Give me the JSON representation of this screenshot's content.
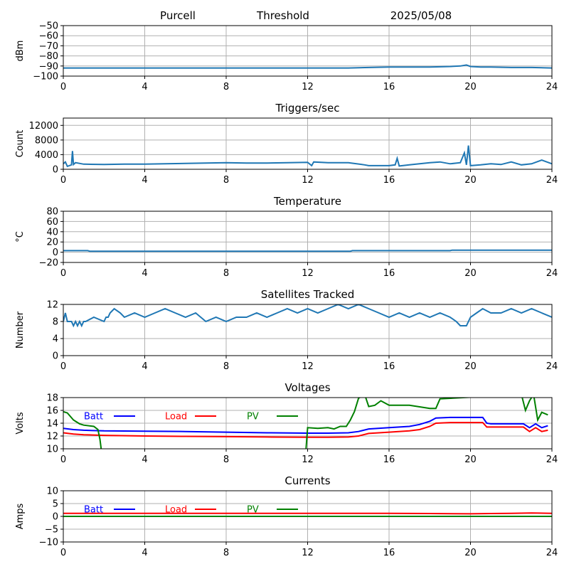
{
  "header": {
    "station": "Purcell",
    "section": "Threshold",
    "date": "2025/05/08"
  },
  "colors": {
    "series_default": "#1f77b4",
    "batt": "#0000ff",
    "load": "#ff0000",
    "pv": "#008000",
    "grid": "#b0b0b0"
  },
  "chart_data": [
    {
      "type": "line",
      "title": "",
      "ylabel": "dBm",
      "xlim": [
        0,
        24
      ],
      "ylim": [
        -100,
        -50
      ],
      "xticks": [
        0,
        4,
        8,
        12,
        16,
        20,
        24
      ],
      "yticks": [
        -100,
        -90,
        -80,
        -70,
        -60,
        -50
      ],
      "grid": true,
      "series": [
        {
          "color": "#1f77b4",
          "x": [
            0,
            2,
            4,
            6,
            8,
            10,
            12,
            14,
            15,
            16,
            17,
            18,
            19,
            19.5,
            19.8,
            20,
            20.5,
            21,
            22,
            23,
            24
          ],
          "y": [
            -92,
            -92,
            -92,
            -92,
            -92,
            -92,
            -92,
            -92,
            -91.5,
            -91,
            -91,
            -91,
            -90.5,
            -90,
            -89,
            -90.5,
            -91,
            -91,
            -91.5,
            -91.5,
            -92
          ]
        }
      ]
    },
    {
      "type": "line",
      "title": "Triggers/sec",
      "ylabel": "Count",
      "xlim": [
        0,
        24
      ],
      "ylim": [
        0,
        14000
      ],
      "xticks": [
        0,
        4,
        8,
        12,
        16,
        20,
        24
      ],
      "yticks": [
        0,
        4000,
        8000,
        12000
      ],
      "grid": true,
      "series": [
        {
          "color": "#1f77b4",
          "x": [
            0,
            0.1,
            0.2,
            0.4,
            0.45,
            0.5,
            0.6,
            1,
            2,
            3,
            4,
            5,
            6,
            7,
            8,
            9,
            10,
            11,
            12,
            12.2,
            12.3,
            13,
            14,
            14.8,
            15,
            16,
            16.3,
            16.4,
            16.5,
            17,
            17.5,
            18,
            18.5,
            19,
            19.5,
            19.7,
            19.8,
            19.9,
            20,
            20.5,
            21,
            21.5,
            22,
            22.5,
            23,
            23.5,
            24
          ],
          "y": [
            1500,
            2000,
            800,
            1200,
            5000,
            1300,
            1800,
            1400,
            1300,
            1400,
            1400,
            1500,
            1600,
            1700,
            1800,
            1700,
            1700,
            1800,
            1900,
            1000,
            2000,
            1800,
            1800,
            1200,
            1000,
            1000,
            1200,
            3000,
            900,
            1200,
            1500,
            1800,
            2000,
            1500,
            1800,
            4500,
            1200,
            6500,
            1000,
            1200,
            1500,
            1300,
            2000,
            1200,
            1500,
            2500,
            1500
          ]
        }
      ]
    },
    {
      "type": "line",
      "title": "Temperature",
      "ylabel": "°C",
      "xlim": [
        0,
        24
      ],
      "ylim": [
        -20,
        80
      ],
      "xticks": [
        0,
        4,
        8,
        12,
        16,
        20,
        24
      ],
      "yticks": [
        -20,
        0,
        20,
        40,
        60,
        80
      ],
      "grid": true,
      "series": [
        {
          "color": "#1f77b4",
          "x": [
            0,
            1.2,
            1.3,
            4,
            8,
            12,
            14.1,
            14.2,
            16,
            18,
            19,
            19.1,
            22,
            24
          ],
          "y": [
            3,
            3,
            2,
            2,
            2,
            2,
            2,
            3,
            3,
            3,
            3,
            4,
            4,
            4
          ]
        }
      ]
    },
    {
      "type": "line",
      "title": "Satellites Tracked",
      "ylabel": "Number",
      "xlim": [
        0,
        24
      ],
      "ylim": [
        0,
        12
      ],
      "xticks": [
        0,
        4,
        8,
        12,
        16,
        20,
        24
      ],
      "yticks": [
        0,
        4,
        8,
        12
      ],
      "grid": true,
      "series": [
        {
          "color": "#1f77b4",
          "x": [
            0,
            0.1,
            0.2,
            0.4,
            0.5,
            0.6,
            0.7,
            0.8,
            0.9,
            1.0,
            1.1,
            1.5,
            2.0,
            2.1,
            2.2,
            2.3,
            2.5,
            2.8,
            3.0,
            3.5,
            4.0,
            4.5,
            5.0,
            5.5,
            6.0,
            6.5,
            7.0,
            7.5,
            8.0,
            8.5,
            9.0,
            9.5,
            10.0,
            10.5,
            11.0,
            11.5,
            12.0,
            12.5,
            13.0,
            13.5,
            14.0,
            14.5,
            15.0,
            15.5,
            16.0,
            16.5,
            17.0,
            17.5,
            18.0,
            18.5,
            19.0,
            19.3,
            19.5,
            19.8,
            20.0,
            20.3,
            20.6,
            21.0,
            21.5,
            22.0,
            22.5,
            23.0,
            23.5,
            24.0
          ],
          "y": [
            8,
            10,
            8,
            8,
            7,
            8,
            7,
            8,
            7,
            8,
            8,
            9,
            8,
            9,
            9,
            10,
            11,
            10,
            9,
            10,
            9,
            10,
            11,
            10,
            9,
            10,
            8,
            9,
            8,
            9,
            9,
            10,
            9,
            10,
            11,
            10,
            11,
            10,
            11,
            12,
            11,
            12,
            11,
            10,
            9,
            10,
            9,
            10,
            9,
            10,
            9,
            8,
            7,
            7,
            9,
            10,
            11,
            10,
            10,
            11,
            10,
            11,
            10,
            9
          ]
        }
      ]
    },
    {
      "type": "line",
      "title": "Voltages",
      "ylabel": "Volts",
      "xlim": [
        0,
        24
      ],
      "ylim": [
        10,
        18
      ],
      "xticks": [
        0,
        4,
        8,
        12,
        16,
        20,
        24
      ],
      "yticks": [
        10,
        12,
        14,
        16,
        18
      ],
      "grid": true,
      "legend": "top-left",
      "series": [
        {
          "name": "Batt",
          "color": "#0000ff",
          "x": [
            0,
            0.5,
            1,
            2,
            4,
            6,
            8,
            10,
            12,
            13,
            14,
            14.5,
            15,
            16,
            17,
            17.5,
            18,
            18.3,
            19,
            20,
            20.6,
            20.8,
            21,
            22,
            22.6,
            22.9,
            23.2,
            23.5,
            23.8
          ],
          "y": [
            13.2,
            13.0,
            12.9,
            12.8,
            12.75,
            12.7,
            12.6,
            12.5,
            12.45,
            12.45,
            12.5,
            12.7,
            13.1,
            13.3,
            13.5,
            13.8,
            14.3,
            14.8,
            14.9,
            14.9,
            14.9,
            14.0,
            13.9,
            13.9,
            13.9,
            13.3,
            13.9,
            13.3,
            13.6
          ]
        },
        {
          "name": "Load",
          "color": "#ff0000",
          "x": [
            0,
            0.5,
            1,
            2,
            4,
            6,
            8,
            10,
            12,
            13,
            14,
            14.5,
            15,
            16,
            17,
            17.5,
            18,
            18.3,
            19,
            20,
            20.6,
            20.8,
            21,
            22,
            22.6,
            22.9,
            23.2,
            23.5,
            23.8
          ],
          "y": [
            12.5,
            12.3,
            12.2,
            12.1,
            12.0,
            11.95,
            11.9,
            11.85,
            11.8,
            11.8,
            11.85,
            12.0,
            12.4,
            12.6,
            12.8,
            13.0,
            13.5,
            14.0,
            14.1,
            14.1,
            14.1,
            13.4,
            13.4,
            13.4,
            13.4,
            12.7,
            13.3,
            12.7,
            12.9
          ]
        },
        {
          "name": "PV",
          "color": "#008000",
          "x": [
            0,
            0.2,
            0.5,
            0.8,
            1,
            1.5,
            1.7,
            1.8,
            1.9,
            11.9,
            12,
            12.5,
            13,
            13.3,
            13.6,
            13.9,
            14.1,
            14.3,
            14.5,
            14.8,
            15.0,
            15.3,
            15.6,
            16,
            17,
            18,
            18.3,
            18.5,
            22.5,
            22.7,
            22.9,
            23.1,
            23.3,
            23.5,
            23.8
          ],
          "y": [
            15.8,
            15.6,
            14.5,
            13.9,
            13.7,
            13.5,
            13.0,
            11.5,
            9.0,
            9.0,
            13.3,
            13.2,
            13.3,
            13.1,
            13.5,
            13.5,
            14.5,
            15.8,
            17.9,
            18.5,
            16.6,
            16.8,
            17.5,
            16.8,
            16.8,
            16.3,
            16.3,
            17.8,
            18.5,
            16.0,
            17.5,
            18.5,
            14.5,
            15.7,
            15.3
          ]
        }
      ]
    },
    {
      "type": "line",
      "title": "Currents",
      "ylabel": "Amps",
      "xlim": [
        0,
        24
      ],
      "ylim": [
        -10,
        10
      ],
      "xticks": [
        0,
        4,
        8,
        12,
        16,
        20,
        24
      ],
      "yticks": [
        -10,
        -5,
        0,
        5,
        10
      ],
      "grid": true,
      "legend": "top-left",
      "series": [
        {
          "name": "Batt",
          "color": "#0000ff",
          "x": [
            0,
            24
          ],
          "y": [
            0,
            0
          ]
        },
        {
          "name": "Load",
          "color": "#ff0000",
          "x": [
            0,
            4,
            8,
            12,
            16,
            18,
            20,
            21,
            22,
            23,
            24
          ],
          "y": [
            1.2,
            1.2,
            1.2,
            1.2,
            1.2,
            1.1,
            1.0,
            1.1,
            1.2,
            1.3,
            1.2
          ]
        },
        {
          "name": "PV",
          "color": "#008000",
          "x": [
            0,
            24
          ],
          "y": [
            0,
            0
          ]
        }
      ]
    }
  ]
}
